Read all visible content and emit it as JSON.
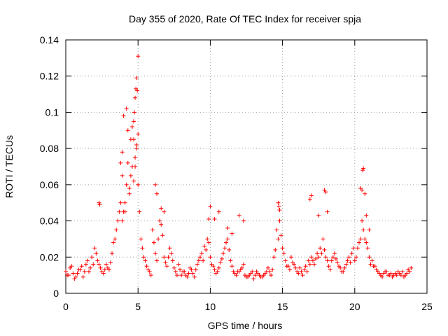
{
  "chart_data": {
    "type": "scatter",
    "title": "Day 355 of 2020, Rate Of TEC Index for receiver spja",
    "xlabel": "GPS time / hours",
    "ylabel": "ROTI / TECUs",
    "xlim": [
      0,
      25
    ],
    "ylim": [
      0,
      0.14
    ],
    "x_ticks": [
      0,
      5,
      10,
      15,
      20,
      25
    ],
    "x_tick_labels": [
      "0",
      "5",
      "10",
      "15",
      "20",
      "25"
    ],
    "y_ticks": [
      0,
      0.02,
      0.04,
      0.06,
      0.08,
      0.1,
      0.12,
      0.14
    ],
    "y_tick_labels": [
      "0",
      "0.02",
      "0.04",
      "0.06",
      "0.08",
      "0.1",
      "0.12",
      "0.14"
    ],
    "grid": true,
    "marker": "+",
    "marker_color": "#ff0000",
    "series": [
      {
        "name": "ROTI",
        "x": [
          0.0,
          0.2,
          0.4,
          0.6,
          0.8,
          1.0,
          1.2,
          1.4,
          1.6,
          1.8,
          2.0,
          2.2,
          2.4,
          2.6,
          2.8,
          3.0,
          3.2,
          3.4,
          3.6,
          3.8,
          4.0,
          4.2,
          4.4,
          4.6,
          4.8,
          5.0,
          5.2,
          5.4,
          5.6,
          5.8,
          6.0,
          6.2,
          6.4,
          6.6,
          6.8,
          7.0,
          7.2,
          7.4,
          7.6,
          7.8,
          8.0,
          8.2,
          8.4,
          8.6,
          8.8,
          9.0,
          9.2,
          9.4,
          9.6,
          9.8,
          10.0,
          10.2,
          10.4,
          10.6,
          10.8,
          11.0,
          11.2,
          11.4,
          11.6,
          11.8,
          12.0,
          12.2,
          12.4,
          12.6,
          12.8,
          13.0,
          13.2,
          13.4,
          13.6,
          13.8,
          14.0,
          14.2,
          14.4,
          14.6,
          14.8,
          15.0,
          15.2,
          15.4,
          15.6,
          15.8,
          16.0,
          16.2,
          16.4,
          16.6,
          16.8,
          17.0,
          17.2,
          17.4,
          17.6,
          17.8,
          18.0,
          18.2,
          18.4,
          18.6,
          18.8,
          19.0,
          19.2,
          19.4,
          19.6,
          19.8,
          20.0,
          20.2,
          20.4,
          20.6,
          20.8,
          21.0,
          21.2,
          21.4,
          21.6,
          21.8,
          22.0,
          22.2,
          22.4,
          22.6,
          22.8,
          23.0,
          23.2,
          23.4,
          23.6,
          23.8,
          0.1,
          0.3,
          0.5,
          0.7,
          0.9,
          1.1,
          1.3,
          1.5,
          1.7,
          1.9,
          2.1,
          2.3,
          2.5,
          2.7,
          2.9,
          3.1,
          3.3,
          3.5,
          3.7,
          3.9,
          4.1,
          4.3,
          4.5,
          4.7,
          4.9,
          5.1,
          5.3,
          5.5,
          5.7,
          5.9,
          6.1,
          6.3,
          6.5,
          6.7,
          6.9,
          7.1,
          7.3,
          7.5,
          7.7,
          7.9,
          8.1,
          8.3,
          8.5,
          8.7,
          8.9,
          9.1,
          9.3,
          9.5,
          9.7,
          9.9,
          10.1,
          10.3,
          10.5,
          10.7,
          10.9,
          11.1,
          11.3,
          11.5,
          11.7,
          11.9,
          12.1,
          12.3,
          12.5,
          12.7,
          12.9,
          13.1,
          13.3,
          13.5,
          13.7,
          13.9,
          14.1,
          14.3,
          14.5,
          14.7,
          14.9,
          15.1,
          15.3,
          15.5,
          15.7,
          15.9,
          16.1,
          16.3,
          16.5,
          16.7,
          16.9,
          17.1,
          17.3,
          17.5,
          17.7,
          17.9,
          18.1,
          18.3,
          18.5,
          18.7,
          18.9,
          19.1,
          19.3,
          19.5,
          19.7,
          19.9,
          20.1,
          20.3,
          20.5,
          20.7,
          20.9,
          21.1,
          21.3,
          21.5,
          21.7,
          21.9,
          22.1,
          22.3,
          22.5,
          22.7,
          22.9,
          23.1,
          23.3,
          23.5,
          23.7,
          23.9,
          2.3,
          2.35,
          3.8,
          3.9,
          4.0,
          4.2,
          4.3,
          4.5,
          4.6,
          4.7,
          4.75,
          4.8,
          4.85,
          4.9,
          4.95,
          5.0,
          5.0,
          4.9,
          4.8,
          4.7,
          4.4,
          4.1,
          3.9,
          6.2,
          6.3,
          6.6,
          6.8,
          9.9,
          10.0,
          10.3,
          10.6,
          11.2,
          11.5,
          12.0,
          12.3,
          14.7,
          14.75,
          14.8,
          16.9,
          17.0,
          17.5,
          17.9,
          18.0,
          18.1,
          20.4,
          20.5,
          20.55,
          20.6,
          20.7,
          20.8,
          21.0
        ],
        "y": [
          0.012,
          0.01,
          0.015,
          0.008,
          0.011,
          0.013,
          0.009,
          0.016,
          0.012,
          0.02,
          0.025,
          0.018,
          0.014,
          0.011,
          0.016,
          0.013,
          0.022,
          0.03,
          0.04,
          0.05,
          0.045,
          0.06,
          0.055,
          0.07,
          0.075,
          0.06,
          0.03,
          0.02,
          0.015,
          0.012,
          0.035,
          0.022,
          0.03,
          0.038,
          0.02,
          0.015,
          0.025,
          0.018,
          0.012,
          0.016,
          0.01,
          0.012,
          0.009,
          0.014,
          0.011,
          0.013,
          0.018,
          0.022,
          0.026,
          0.03,
          0.02,
          0.015,
          0.011,
          0.014,
          0.019,
          0.025,
          0.03,
          0.018,
          0.012,
          0.01,
          0.012,
          0.014,
          0.01,
          0.009,
          0.011,
          0.008,
          0.012,
          0.01,
          0.009,
          0.011,
          0.014,
          0.01,
          0.02,
          0.035,
          0.04,
          0.025,
          0.018,
          0.015,
          0.02,
          0.016,
          0.012,
          0.014,
          0.01,
          0.015,
          0.018,
          0.02,
          0.016,
          0.022,
          0.025,
          0.03,
          0.02,
          0.015,
          0.018,
          0.022,
          0.017,
          0.014,
          0.012,
          0.016,
          0.02,
          0.022,
          0.018,
          0.025,
          0.03,
          0.035,
          0.028,
          0.02,
          0.018,
          0.015,
          0.012,
          0.01,
          0.011,
          0.012,
          0.01,
          0.009,
          0.011,
          0.012,
          0.01,
          0.009,
          0.011,
          0.012,
          0.01,
          0.014,
          0.011,
          0.009,
          0.013,
          0.015,
          0.012,
          0.018,
          0.014,
          0.016,
          0.022,
          0.016,
          0.012,
          0.013,
          0.014,
          0.017,
          0.028,
          0.035,
          0.045,
          0.065,
          0.05,
          0.072,
          0.065,
          0.085,
          0.082,
          0.045,
          0.025,
          0.018,
          0.013,
          0.01,
          0.028,
          0.018,
          0.04,
          0.032,
          0.017,
          0.02,
          0.022,
          0.014,
          0.01,
          0.013,
          0.012,
          0.01,
          0.011,
          0.013,
          0.009,
          0.016,
          0.02,
          0.018,
          0.024,
          0.028,
          0.016,
          0.013,
          0.012,
          0.017,
          0.022,
          0.028,
          0.024,
          0.015,
          0.011,
          0.012,
          0.013,
          0.016,
          0.009,
          0.01,
          0.012,
          0.01,
          0.011,
          0.009,
          0.01,
          0.012,
          0.012,
          0.013,
          0.024,
          0.03,
          0.032,
          0.022,
          0.015,
          0.013,
          0.017,
          0.014,
          0.011,
          0.012,
          0.013,
          0.012,
          0.016,
          0.018,
          0.019,
          0.02,
          0.022,
          0.024,
          0.018,
          0.013,
          0.02,
          0.019,
          0.015,
          0.012,
          0.014,
          0.018,
          0.017,
          0.025,
          0.02,
          0.028,
          0.04,
          0.03,
          0.025,
          0.016,
          0.015,
          0.013,
          0.011,
          0.009,
          0.012,
          0.01,
          0.011,
          0.01,
          0.01,
          0.011,
          0.012,
          0.01,
          0.013,
          0.014,
          0.05,
          0.049,
          0.072,
          0.078,
          0.098,
          0.102,
          0.09,
          0.085,
          0.092,
          0.095,
          0.1,
          0.108,
          0.113,
          0.119,
          0.112,
          0.131,
          0.088,
          0.08,
          0.07,
          0.062,
          0.058,
          0.045,
          0.04,
          0.06,
          0.055,
          0.047,
          0.045,
          0.041,
          0.048,
          0.041,
          0.045,
          0.036,
          0.033,
          0.043,
          0.04,
          0.05,
          0.048,
          0.046,
          0.052,
          0.054,
          0.043,
          0.057,
          0.056,
          0.045,
          0.058,
          0.057,
          0.068,
          0.069,
          0.055,
          0.043,
          0.035
        ]
      }
    ]
  }
}
